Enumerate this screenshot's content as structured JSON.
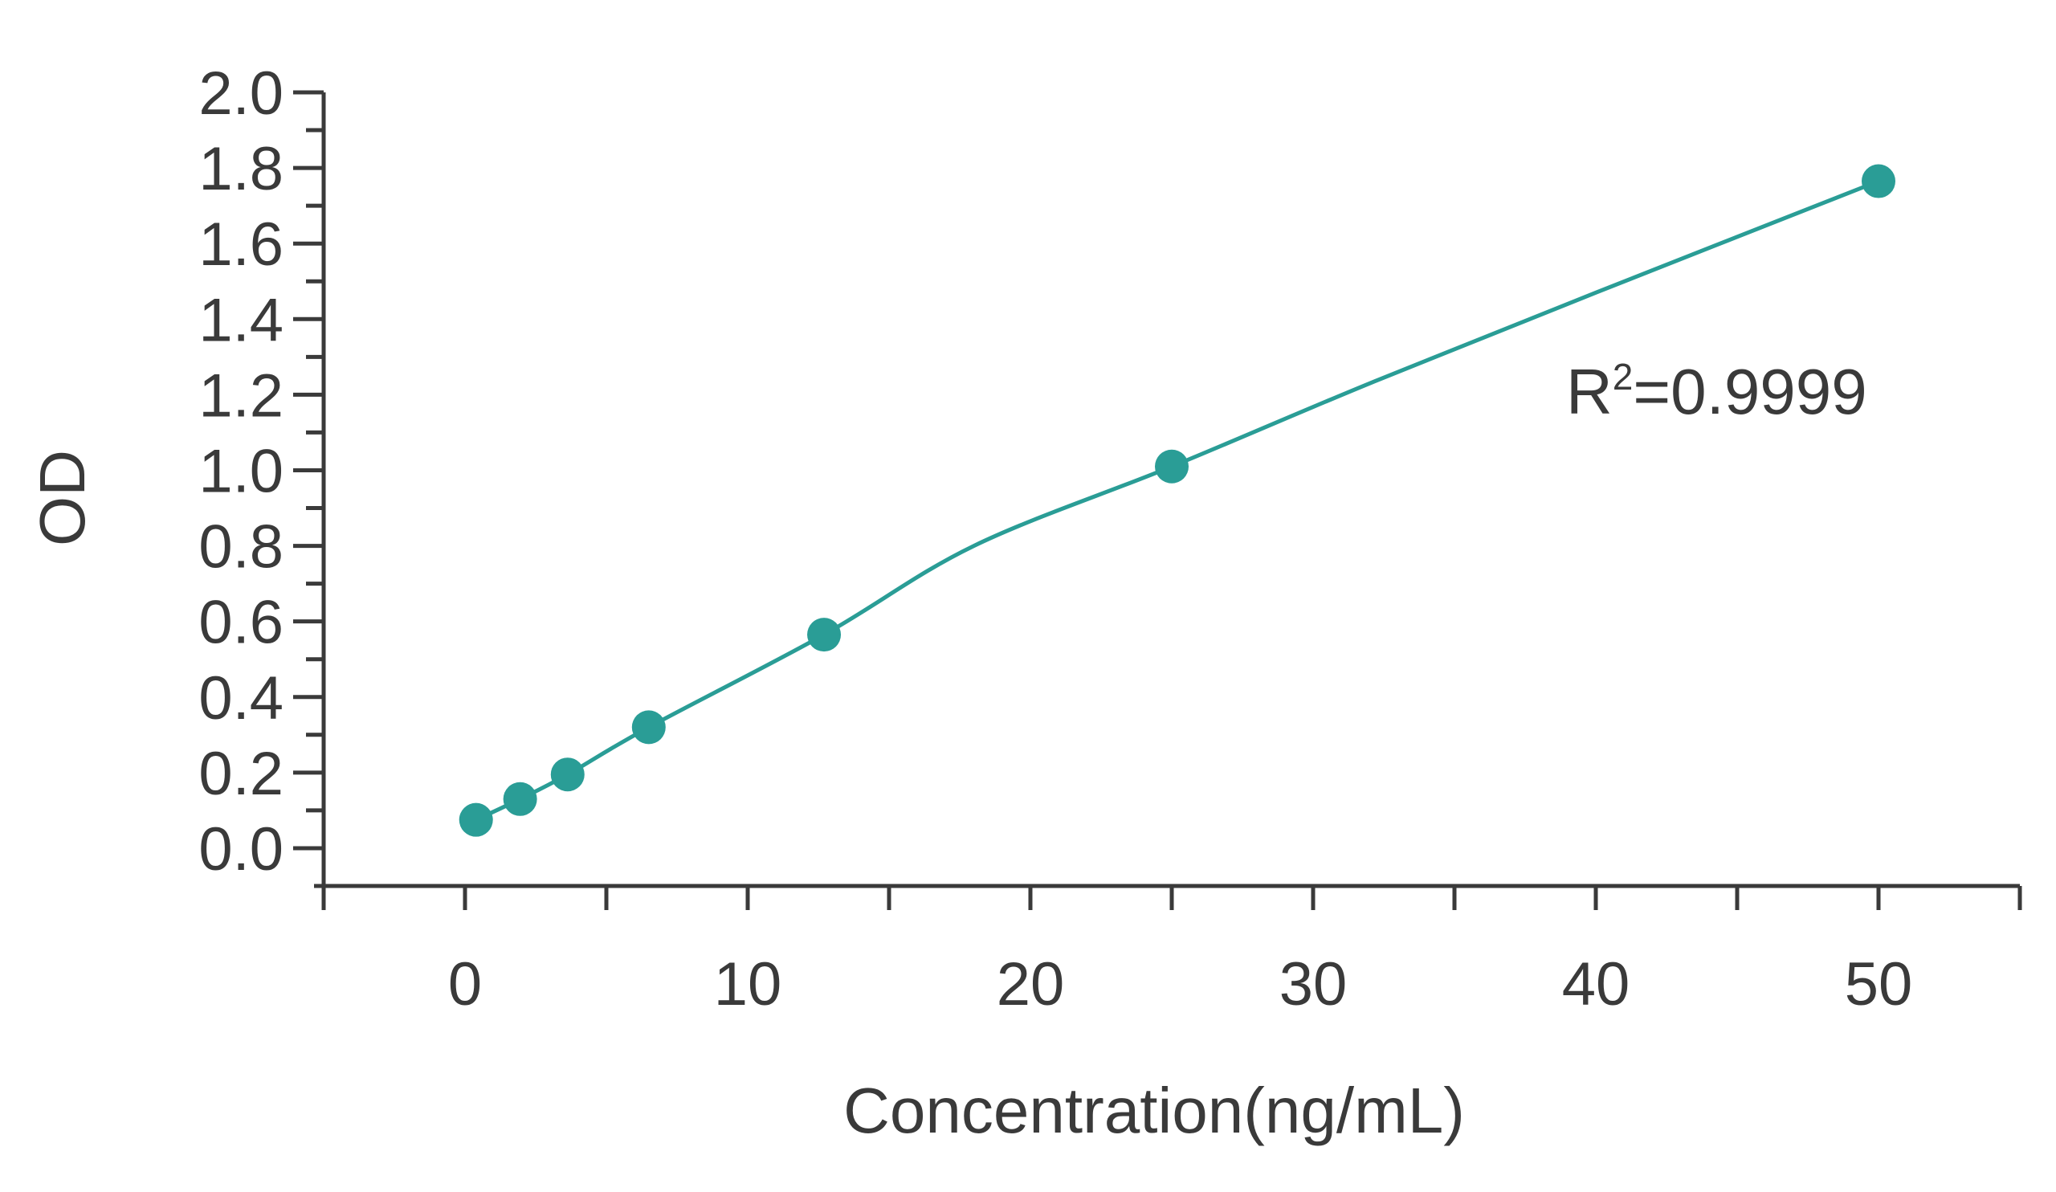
{
  "chart_data": {
    "type": "scatter",
    "title": "",
    "xlabel": "Concentration(ng/mL)",
    "ylabel": "OD",
    "xlim": [
      -5,
      55
    ],
    "ylim": [
      -0.1,
      2.0
    ],
    "x_ticks": [
      0,
      10,
      20,
      30,
      40,
      50
    ],
    "x_tick_labels": [
      "0",
      "10",
      "20",
      "30",
      "40",
      "50"
    ],
    "x_minor_ticks": [
      -5,
      5,
      15,
      25,
      35,
      45,
      55
    ],
    "y_ticks": [
      0.0,
      0.2,
      0.4,
      0.6,
      0.8,
      1.0,
      1.2,
      1.4,
      1.6,
      1.8,
      2.0
    ],
    "y_tick_labels": [
      "0.0",
      "0.2",
      "0.4",
      "0.6",
      "0.8",
      "1.0",
      "1.2",
      "1.4",
      "1.6",
      "1.8",
      "2.0"
    ],
    "y_minor_ticks": [
      0.1,
      0.3,
      0.5,
      0.7,
      0.9,
      1.1,
      1.3,
      1.5,
      1.7,
      1.9
    ],
    "grid": false,
    "series": [
      {
        "x": [
          0.39,
          1.95,
          3.63,
          6.5,
          12.7,
          25.0,
          50.0
        ],
        "y": [
          0.075,
          0.13,
          0.195,
          0.32,
          0.565,
          1.01,
          1.765
        ]
      }
    ],
    "fit_curve": {
      "type": "smooth",
      "x": [
        0.39,
        1.95,
        3.63,
        6.5,
        12.7,
        18.0,
        25.0,
        32.0,
        40.0,
        50.0
      ],
      "y": [
        0.075,
        0.13,
        0.195,
        0.32,
        0.565,
        0.8,
        1.01,
        1.23,
        1.47,
        1.765
      ]
    },
    "annotation": {
      "base": "R",
      "superscript": "2",
      "rest": "=0.9999"
    },
    "colors": {
      "series": "#2a9d96",
      "axis": "#3a3a3a",
      "text": "#3a3a3a"
    }
  }
}
